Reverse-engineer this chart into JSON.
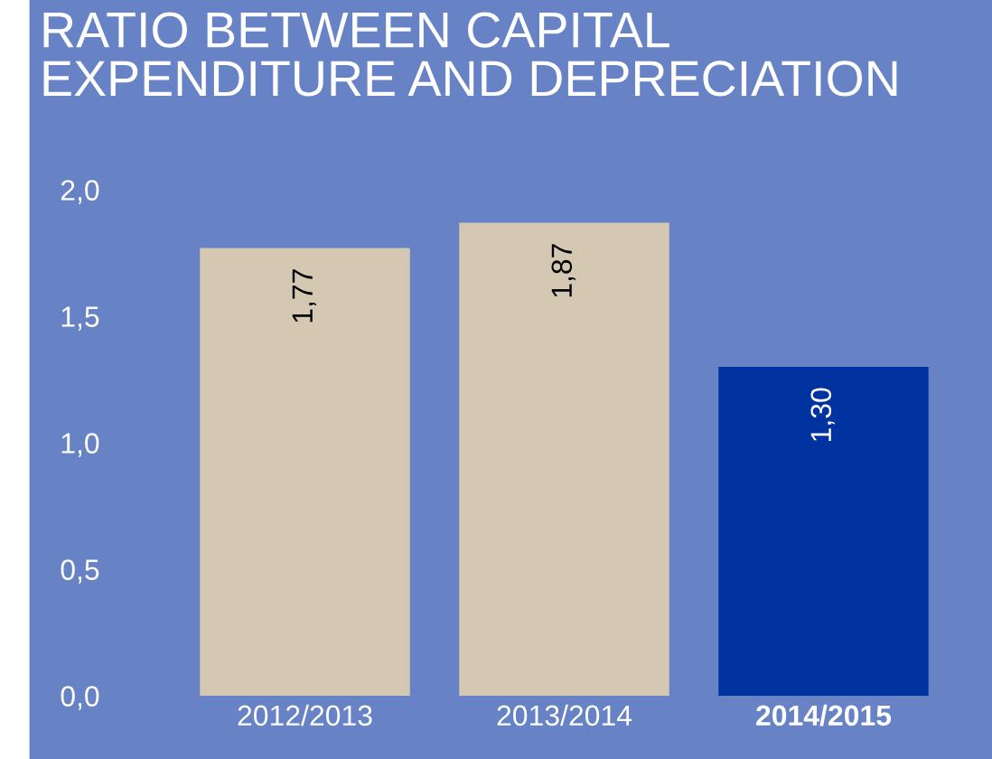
{
  "chart_data": {
    "type": "bar",
    "title": "RATIO BETWEEN CAPITAL\nEXPENDITURE AND DEPRECIATION",
    "categories": [
      "2012/2013",
      "2013/2014",
      "2014/2015"
    ],
    "values": [
      1.77,
      1.87,
      1.3
    ],
    "colors": [
      "#d5c8b3",
      "#d5c8b3",
      "#0033a0"
    ],
    "value_labels": [
      "1,77",
      "1,87",
      "1,30"
    ],
    "ylim": [
      0,
      2.0
    ],
    "yticks": [
      {
        "value": 0,
        "label": "0,0"
      },
      {
        "value": 0.5,
        "label": "0,5"
      },
      {
        "value": 1.0,
        "label": "1,0"
      },
      {
        "value": 1.5,
        "label": "1,5"
      },
      {
        "value": 2.0,
        "label": "2,0"
      }
    ]
  }
}
